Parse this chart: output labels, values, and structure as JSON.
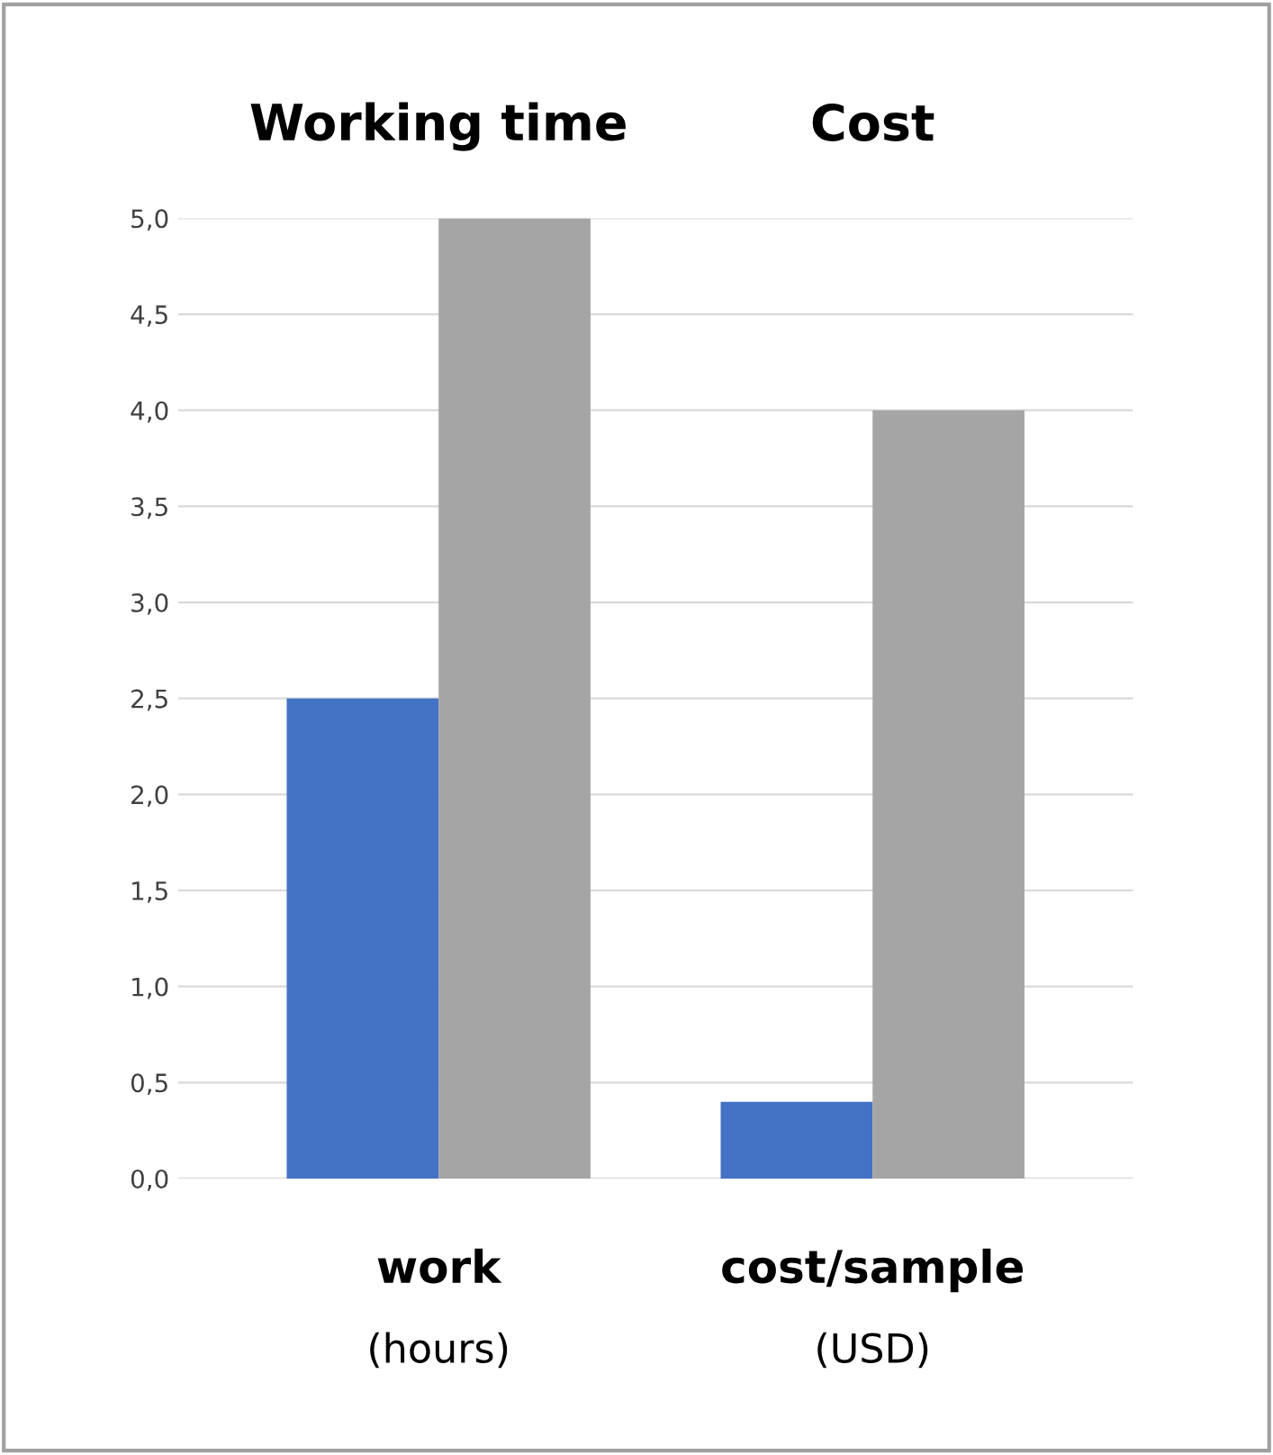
{
  "chart_data": {
    "type": "bar",
    "categories": [
      "work",
      "cost/sample"
    ],
    "series": [
      {
        "color": "#4472c4",
        "values": [
          2.5,
          0.4
        ]
      },
      {
        "color": "#a5a5a5",
        "values": [
          5.0,
          4.0
        ]
      }
    ],
    "ylim": [
      0,
      5.0
    ],
    "yticks": [
      {
        "value": 0,
        "label": "0,0"
      },
      {
        "value": 0.5,
        "label": "0,5"
      },
      {
        "value": 1,
        "label": "1,0"
      },
      {
        "value": 1.5,
        "label": "1,5"
      },
      {
        "value": 2,
        "label": "2,0"
      },
      {
        "value": 2.5,
        "label": "2,5"
      },
      {
        "value": 3,
        "label": "3,0"
      },
      {
        "value": 3.5,
        "label": "3,5"
      },
      {
        "value": 4,
        "label": "4,0"
      },
      {
        "value": 4.5,
        "label": "4,5"
      },
      {
        "value": 5,
        "label": "5,0"
      }
    ],
    "grid": "y",
    "legend": false,
    "annotations": [
      "Working time",
      "Cost",
      "(hours)",
      "(USD)"
    ]
  }
}
